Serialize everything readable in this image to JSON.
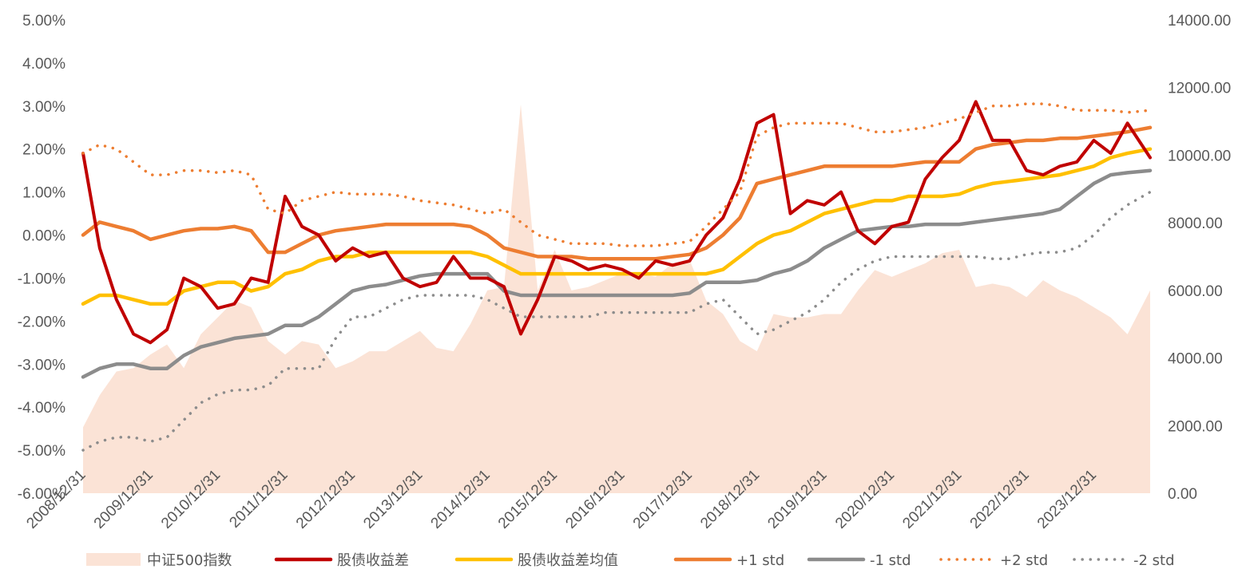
{
  "chart_data": {
    "type": "line",
    "title": "",
    "xlabel": "",
    "ylabel": "",
    "y2label": "",
    "ylim": [
      -6,
      5
    ],
    "y2lim": [
      0,
      14000
    ],
    "y_ticks": [
      "5.00%",
      "4.00%",
      "3.00%",
      "2.00%",
      "1.00%",
      "0.00%",
      "-1.00%",
      "-2.00%",
      "-3.00%",
      "-4.00%",
      "-5.00%",
      "-6.00%"
    ],
    "y2_ticks": [
      "14000.00",
      "12000.00",
      "10000.00",
      "8000.00",
      "6000.00",
      "4000.00",
      "2000.00",
      "0.00"
    ],
    "x_tick_labels": [
      "2008/12/31",
      "2009/12/31",
      "2010/12/31",
      "2011/12/31",
      "2012/12/31",
      "2013/12/31",
      "2014/12/31",
      "2015/12/31",
      "2016/12/31",
      "2017/12/31",
      "2018/12/31",
      "2019/12/31",
      "2020/12/31",
      "2021/12/31",
      "2022/12/31",
      "2023/12/31"
    ],
    "xlim": [
      "2008/12/31",
      "2024/10/31"
    ],
    "legend_position": "bottom",
    "grid": false,
    "x": [
      "2008/12/31",
      "2009/03/31",
      "2009/06/30",
      "2009/09/30",
      "2009/12/31",
      "2010/03/31",
      "2010/06/30",
      "2010/09/30",
      "2010/12/31",
      "2011/03/31",
      "2011/06/30",
      "2011/09/30",
      "2011/12/31",
      "2012/03/31",
      "2012/06/30",
      "2012/09/30",
      "2012/12/31",
      "2013/03/31",
      "2013/06/30",
      "2013/09/30",
      "2013/12/31",
      "2014/03/31",
      "2014/06/30",
      "2014/09/30",
      "2014/12/31",
      "2015/03/31",
      "2015/06/30",
      "2015/09/30",
      "2015/12/31",
      "2016/03/31",
      "2016/06/30",
      "2016/09/30",
      "2016/12/31",
      "2017/03/31",
      "2017/06/30",
      "2017/09/30",
      "2017/12/31",
      "2018/03/31",
      "2018/06/30",
      "2018/09/30",
      "2018/12/31",
      "2019/03/31",
      "2019/06/30",
      "2019/09/30",
      "2019/12/31",
      "2020/03/31",
      "2020/06/30",
      "2020/09/30",
      "2020/12/31",
      "2021/03/31",
      "2021/06/30",
      "2021/09/30",
      "2021/12/31",
      "2022/03/31",
      "2022/06/30",
      "2022/09/30",
      "2022/12/31",
      "2023/03/31",
      "2023/06/30",
      "2023/09/30",
      "2023/12/31",
      "2024/03/31",
      "2024/06/30",
      "2024/10/31"
    ],
    "series": [
      {
        "name": "中证500指数",
        "type": "area",
        "axis": "right",
        "color": "#fbe3d6",
        "values": [
          1950,
          2900,
          3600,
          3700,
          4100,
          4400,
          3700,
          4700,
          5200,
          5700,
          5500,
          4500,
          4100,
          4500,
          4400,
          3700,
          3900,
          4200,
          4200,
          4500,
          4800,
          4300,
          4200,
          5000,
          6000,
          6100,
          11500,
          6000,
          7200,
          6000,
          6100,
          6300,
          6500,
          6500,
          6400,
          6800,
          6900,
          5700,
          5300,
          4500,
          4200,
          5300,
          5200,
          5200,
          5300,
          5300,
          6000,
          6600,
          6400,
          6600,
          6800,
          7100,
          7200,
          6100,
          6200,
          6100,
          5800,
          6300,
          6000,
          5800,
          5500,
          5200,
          4700,
          6000
        ]
      },
      {
        "name": "股债收益差",
        "type": "line",
        "axis": "left",
        "color": "#c00000",
        "values": [
          1.9,
          -0.3,
          -1.5,
          -2.3,
          -2.5,
          -2.2,
          -1.0,
          -1.2,
          -1.7,
          -1.6,
          -1.0,
          -1.1,
          0.9,
          0.2,
          0.0,
          -0.6,
          -0.3,
          -0.5,
          -0.4,
          -1.0,
          -1.2,
          -1.1,
          -0.5,
          -1.0,
          -1.0,
          -1.2,
          -2.3,
          -1.5,
          -0.5,
          -0.6,
          -0.8,
          -0.7,
          -0.8,
          -1.0,
          -0.6,
          -0.7,
          -0.6,
          0.0,
          0.4,
          1.3,
          2.6,
          2.8,
          0.5,
          0.8,
          0.7,
          1.0,
          0.1,
          -0.2,
          0.2,
          0.3,
          1.3,
          1.8,
          2.2,
          3.1,
          2.2,
          2.2,
          1.5,
          1.4,
          1.6,
          1.7,
          2.2,
          1.9,
          2.6,
          1.8
        ]
      },
      {
        "name": "股债收益差均值",
        "type": "line",
        "axis": "left",
        "color": "#ffc000",
        "values": [
          -1.6,
          -1.4,
          -1.4,
          -1.5,
          -1.6,
          -1.6,
          -1.3,
          -1.2,
          -1.1,
          -1.1,
          -1.3,
          -1.2,
          -0.9,
          -0.8,
          -0.6,
          -0.5,
          -0.5,
          -0.4,
          -0.4,
          -0.4,
          -0.4,
          -0.4,
          -0.4,
          -0.4,
          -0.5,
          -0.7,
          -0.9,
          -0.9,
          -0.9,
          -0.9,
          -0.9,
          -0.9,
          -0.9,
          -0.9,
          -0.9,
          -0.9,
          -0.9,
          -0.9,
          -0.8,
          -0.5,
          -0.2,
          0.0,
          0.1,
          0.3,
          0.5,
          0.6,
          0.7,
          0.8,
          0.8,
          0.9,
          0.9,
          0.9,
          0.95,
          1.1,
          1.2,
          1.25,
          1.3,
          1.35,
          1.4,
          1.5,
          1.6,
          1.8,
          1.9,
          2.0
        ]
      },
      {
        "name": "+1 std",
        "type": "line",
        "axis": "left",
        "color": "#ed7d31",
        "values": [
          0.0,
          0.3,
          0.2,
          0.1,
          -0.1,
          0.0,
          0.1,
          0.15,
          0.15,
          0.2,
          0.1,
          -0.4,
          -0.4,
          -0.2,
          0.0,
          0.1,
          0.15,
          0.2,
          0.25,
          0.25,
          0.25,
          0.25,
          0.25,
          0.2,
          0.0,
          -0.3,
          -0.4,
          -0.5,
          -0.5,
          -0.5,
          -0.55,
          -0.55,
          -0.55,
          -0.55,
          -0.55,
          -0.5,
          -0.45,
          -0.3,
          0.0,
          0.4,
          1.2,
          1.3,
          1.4,
          1.5,
          1.6,
          1.6,
          1.6,
          1.6,
          1.6,
          1.65,
          1.7,
          1.7,
          1.7,
          2.0,
          2.1,
          2.15,
          2.2,
          2.2,
          2.25,
          2.25,
          2.3,
          2.35,
          2.4,
          2.5
        ]
      },
      {
        "name": "-1 std",
        "type": "line",
        "axis": "left",
        "color": "#8c8c8c",
        "values": [
          -3.3,
          -3.1,
          -3.0,
          -3.0,
          -3.1,
          -3.1,
          -2.8,
          -2.6,
          -2.5,
          -2.4,
          -2.35,
          -2.3,
          -2.1,
          -2.1,
          -1.9,
          -1.6,
          -1.3,
          -1.2,
          -1.15,
          -1.05,
          -0.95,
          -0.9,
          -0.9,
          -0.9,
          -0.9,
          -1.3,
          -1.4,
          -1.4,
          -1.4,
          -1.4,
          -1.4,
          -1.4,
          -1.4,
          -1.4,
          -1.4,
          -1.4,
          -1.35,
          -1.1,
          -1.1,
          -1.1,
          -1.05,
          -0.9,
          -0.8,
          -0.6,
          -0.3,
          -0.1,
          0.1,
          0.15,
          0.2,
          0.2,
          0.25,
          0.25,
          0.25,
          0.3,
          0.35,
          0.4,
          0.45,
          0.5,
          0.6,
          0.9,
          1.2,
          1.4,
          1.45,
          1.5
        ]
      },
      {
        "name": "+2 std",
        "type": "dotted",
        "axis": "left",
        "color": "#ed7d31",
        "values": [
          1.9,
          2.1,
          2.0,
          1.7,
          1.4,
          1.4,
          1.5,
          1.5,
          1.45,
          1.5,
          1.4,
          0.6,
          0.5,
          0.8,
          0.9,
          1.0,
          0.95,
          0.95,
          0.95,
          0.9,
          0.8,
          0.75,
          0.7,
          0.6,
          0.5,
          0.6,
          0.3,
          0.0,
          -0.1,
          -0.2,
          -0.2,
          -0.2,
          -0.25,
          -0.25,
          -0.25,
          -0.2,
          -0.15,
          0.2,
          0.6,
          1.0,
          2.3,
          2.5,
          2.6,
          2.6,
          2.6,
          2.6,
          2.5,
          2.4,
          2.4,
          2.45,
          2.5,
          2.6,
          2.7,
          2.85,
          3.0,
          3.0,
          3.05,
          3.05,
          3.0,
          2.9,
          2.9,
          2.9,
          2.85,
          2.9
        ]
      },
      {
        "name": "-2 std",
        "type": "dotted",
        "axis": "left",
        "color": "#8c8c8c",
        "values": [
          -5.0,
          -4.8,
          -4.7,
          -4.7,
          -4.8,
          -4.7,
          -4.3,
          -3.9,
          -3.7,
          -3.6,
          -3.6,
          -3.5,
          -3.1,
          -3.1,
          -3.1,
          -2.4,
          -1.9,
          -1.9,
          -1.7,
          -1.5,
          -1.4,
          -1.4,
          -1.4,
          -1.4,
          -1.5,
          -1.7,
          -1.9,
          -1.9,
          -1.9,
          -1.9,
          -1.9,
          -1.8,
          -1.8,
          -1.8,
          -1.8,
          -1.8,
          -1.8,
          -1.6,
          -1.5,
          -1.9,
          -2.3,
          -2.2,
          -2.0,
          -1.8,
          -1.5,
          -1.1,
          -0.8,
          -0.6,
          -0.5,
          -0.5,
          -0.5,
          -0.5,
          -0.5,
          -0.5,
          -0.55,
          -0.55,
          -0.45,
          -0.4,
          -0.4,
          -0.3,
          0.0,
          0.4,
          0.7,
          1.0
        ]
      }
    ]
  }
}
